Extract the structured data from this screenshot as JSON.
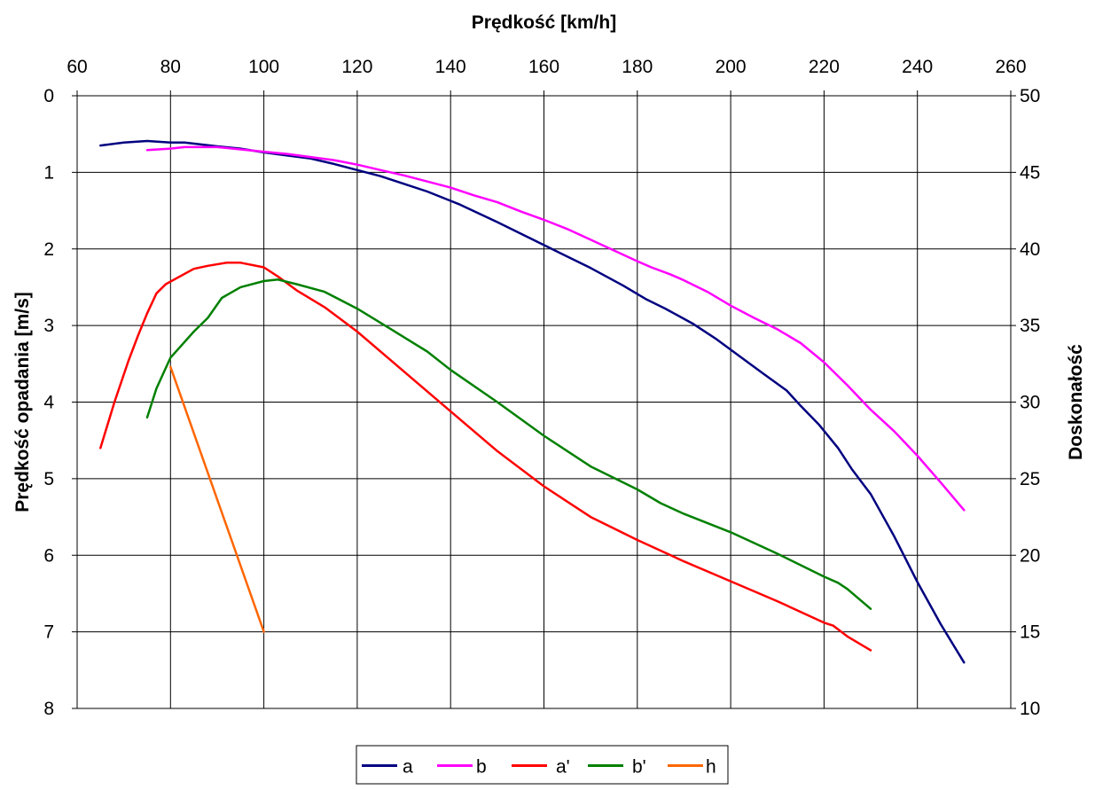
{
  "chart_data": {
    "type": "line",
    "title": "",
    "x_axis": {
      "label": "Prędkość [km/h]",
      "position": "top",
      "range": [
        60,
        260
      ],
      "ticks": [
        60,
        80,
        100,
        120,
        140,
        160,
        180,
        200,
        220,
        240,
        260
      ],
      "grid": true
    },
    "y_axis_left": {
      "label": "Prędkość opadania [m/s]",
      "range": [
        0,
        8
      ],
      "reversed": true,
      "ticks": [
        0,
        1,
        2,
        3,
        4,
        5,
        6,
        7,
        8
      ],
      "grid": true
    },
    "y_axis_right": {
      "label": "Doskonałość",
      "range": [
        10,
        50
      ],
      "ticks": [
        50,
        45,
        40,
        35,
        30,
        25,
        20,
        15,
        10
      ]
    },
    "legend": {
      "placement": "bottom-center",
      "entries": [
        "a",
        "b",
        "a'",
        "b'",
        "h"
      ]
    },
    "series": [
      {
        "name": "a",
        "axis": "left",
        "color": "#000080",
        "points": [
          [
            65,
            0.65
          ],
          [
            70,
            0.61
          ],
          [
            75,
            0.59
          ],
          [
            80,
            0.61
          ],
          [
            83,
            0.61
          ],
          [
            90,
            0.66
          ],
          [
            95,
            0.69
          ],
          [
            100,
            0.74
          ],
          [
            105,
            0.78
          ],
          [
            110,
            0.82
          ],
          [
            115,
            0.89
          ],
          [
            120,
            0.97
          ],
          [
            125,
            1.05
          ],
          [
            130,
            1.15
          ],
          [
            135,
            1.25
          ],
          [
            142,
            1.42
          ],
          [
            150,
            1.65
          ],
          [
            160,
            1.95
          ],
          [
            170,
            2.25
          ],
          [
            177,
            2.48
          ],
          [
            182,
            2.66
          ],
          [
            186,
            2.78
          ],
          [
            192,
            2.98
          ],
          [
            197,
            3.18
          ],
          [
            203,
            3.45
          ],
          [
            207,
            3.63
          ],
          [
            212,
            3.85
          ],
          [
            215,
            4.05
          ],
          [
            219,
            4.3
          ],
          [
            223,
            4.6
          ],
          [
            226,
            4.88
          ],
          [
            230,
            5.2
          ],
          [
            235,
            5.75
          ],
          [
            240,
            6.35
          ],
          [
            245,
            6.9
          ],
          [
            250,
            7.4
          ]
        ]
      },
      {
        "name": "b",
        "axis": "left",
        "color": "#FF00FF",
        "points": [
          [
            75,
            0.71
          ],
          [
            80,
            0.69
          ],
          [
            83,
            0.67
          ],
          [
            90,
            0.67
          ],
          [
            95,
            0.7
          ],
          [
            100,
            0.73
          ],
          [
            105,
            0.76
          ],
          [
            110,
            0.8
          ],
          [
            115,
            0.84
          ],
          [
            120,
            0.9
          ],
          [
            125,
            0.97
          ],
          [
            130,
            1.04
          ],
          [
            135,
            1.12
          ],
          [
            140,
            1.2
          ],
          [
            145,
            1.3
          ],
          [
            150,
            1.39
          ],
          [
            155,
            1.51
          ],
          [
            160,
            1.62
          ],
          [
            165,
            1.74
          ],
          [
            170,
            1.88
          ],
          [
            175,
            2.02
          ],
          [
            180,
            2.16
          ],
          [
            183,
            2.24
          ],
          [
            187,
            2.33
          ],
          [
            190,
            2.41
          ],
          [
            195,
            2.56
          ],
          [
            200,
            2.74
          ],
          [
            205,
            2.9
          ],
          [
            210,
            3.05
          ],
          [
            215,
            3.23
          ],
          [
            220,
            3.48
          ],
          [
            225,
            3.78
          ],
          [
            230,
            4.1
          ],
          [
            235,
            4.38
          ],
          [
            240,
            4.7
          ],
          [
            245,
            5.05
          ],
          [
            250,
            5.41
          ]
        ]
      },
      {
        "name": "a'",
        "axis": "right",
        "color": "#FF0000",
        "points": [
          [
            65,
            27
          ],
          [
            68,
            30
          ],
          [
            71,
            32.7
          ],
          [
            73,
            34.3
          ],
          [
            75,
            35.8
          ],
          [
            77,
            37.1
          ],
          [
            79,
            37.7
          ],
          [
            82,
            38.2
          ],
          [
            85,
            38.7
          ],
          [
            88,
            38.9
          ],
          [
            92,
            39.1
          ],
          [
            95,
            39.1
          ],
          [
            100,
            38.8
          ],
          [
            103,
            38.2
          ],
          [
            107,
            37.3
          ],
          [
            113,
            36.2
          ],
          [
            120,
            34.6
          ],
          [
            130,
            32
          ],
          [
            140,
            29.4
          ],
          [
            150,
            26.8
          ],
          [
            160,
            24.5
          ],
          [
            170,
            22.5
          ],
          [
            180,
            21
          ],
          [
            190,
            19.6
          ],
          [
            200,
            18.3
          ],
          [
            210,
            17
          ],
          [
            220,
            15.6
          ],
          [
            222,
            15.4
          ],
          [
            225,
            14.7
          ],
          [
            230,
            13.8
          ]
        ]
      },
      {
        "name": "b'",
        "axis": "right",
        "color": "#008000",
        "points": [
          [
            75,
            29
          ],
          [
            77,
            30.9
          ],
          [
            80,
            32.9
          ],
          [
            85,
            34.6
          ],
          [
            88,
            35.5
          ],
          [
            91,
            36.8
          ],
          [
            95,
            37.5
          ],
          [
            100,
            37.9
          ],
          [
            103,
            38
          ],
          [
            107,
            37.7
          ],
          [
            113,
            37.2
          ],
          [
            120,
            36.1
          ],
          [
            127,
            34.8
          ],
          [
            135,
            33.3
          ],
          [
            140,
            32.1
          ],
          [
            150,
            30
          ],
          [
            160,
            27.8
          ],
          [
            170,
            25.8
          ],
          [
            180,
            24.3
          ],
          [
            185,
            23.4
          ],
          [
            190,
            22.7
          ],
          [
            200,
            21.5
          ],
          [
            210,
            20.1
          ],
          [
            220,
            18.6
          ],
          [
            223,
            18.2
          ],
          [
            225,
            17.8
          ],
          [
            230,
            16.5
          ]
        ]
      },
      {
        "name": "h",
        "axis": "right",
        "color": "#FF6600",
        "points": [
          [
            80,
            32.3
          ],
          [
            100,
            15
          ]
        ]
      }
    ]
  }
}
